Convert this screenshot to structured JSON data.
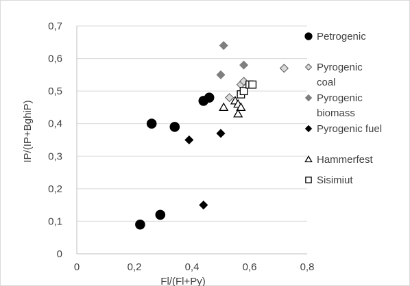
{
  "chart_data": {
    "type": "scatter",
    "title": "",
    "xlabel": "Fl/(Fl+Py)",
    "ylabel": "IP/(IP+BghiP)",
    "xlim": [
      0,
      0.8
    ],
    "ylim": [
      0,
      0.7
    ],
    "xticks": [
      0,
      0.2,
      0.4,
      0.6,
      0.8
    ],
    "yticks": [
      0,
      0.1,
      0.2,
      0.3,
      0.4,
      0.5,
      0.6,
      0.7
    ],
    "xtick_labels": [
      "0",
      "0,2",
      "0,4",
      "0,6",
      "0,8"
    ],
    "ytick_labels": [
      "0",
      "0,1",
      "0,2",
      "0,3",
      "0,4",
      "0,5",
      "0,6",
      "0,7"
    ],
    "grid": "horizontal",
    "legend_position": "right",
    "series": [
      {
        "name": "Petrogenic",
        "marker": "circle",
        "color": "#000000",
        "fill": "#000000",
        "legend_lines": [
          "Petrogenic"
        ],
        "x": [
          0.22,
          0.29,
          0.26,
          0.34,
          0.44,
          0.46
        ],
        "y": [
          0.09,
          0.12,
          0.4,
          0.39,
          0.47,
          0.48
        ]
      },
      {
        "name": "Pyrogenic coal",
        "marker": "diamond",
        "color": "#595959",
        "fill": "#d9d9d9",
        "legend_lines": [
          "Pyrogenic",
          "coal"
        ],
        "x": [
          0.53,
          0.57,
          0.58,
          0.72
        ],
        "y": [
          0.48,
          0.52,
          0.53,
          0.57
        ]
      },
      {
        "name": "Pyrogenic biomass",
        "marker": "diamond",
        "color": "#7f7f7f",
        "fill": "#7f7f7f",
        "legend_lines": [
          "Pyrogenic",
          "biomass"
        ],
        "x": [
          0.51,
          0.5,
          0.58
        ],
        "y": [
          0.64,
          0.55,
          0.58
        ]
      },
      {
        "name": "Pyrogenic fuel",
        "marker": "diamond",
        "color": "#000000",
        "fill": "#000000",
        "legend_lines": [
          "Pyrogenic fuel"
        ],
        "x": [
          0.39,
          0.5,
          0.44
        ],
        "y": [
          0.35,
          0.37,
          0.15
        ]
      },
      {
        "name": "Hammerfest",
        "marker": "triangle",
        "color": "#000000",
        "fill": "#ffffff",
        "legend_lines": [
          "Hammerfest"
        ],
        "x": [
          0.51,
          0.55,
          0.56,
          0.57,
          0.56
        ],
        "y": [
          0.45,
          0.47,
          0.46,
          0.45,
          0.43
        ]
      },
      {
        "name": "Sisimiut",
        "marker": "square",
        "color": "#000000",
        "fill": "#ffffff",
        "legend_lines": [
          "Sisimiut"
        ],
        "x": [
          0.57,
          0.58,
          0.6,
          0.61
        ],
        "y": [
          0.49,
          0.5,
          0.52,
          0.52
        ]
      }
    ]
  }
}
